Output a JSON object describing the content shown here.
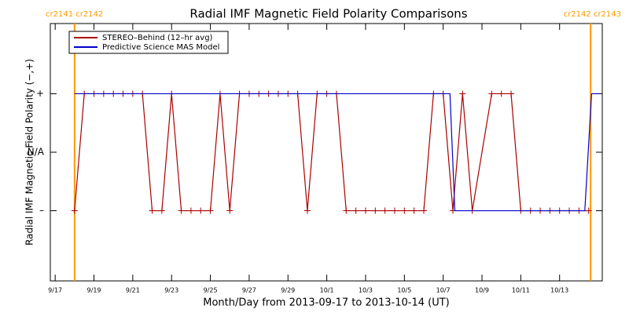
{
  "chart_data": {
    "type": "line",
    "title": "Radial IMF Magnetic Field Polarity Comparisons",
    "x_label": "Month/Day from 2013-09-17 to 2013-10-14 (UT)",
    "y_label": "Radial IMF Magnetic Field Polarity (−,+)",
    "xlim": [
      -0.25,
      28.2
    ],
    "ylim": [
      -2.2,
      2.2
    ],
    "xticks": [
      {
        "value": 0,
        "label": "9/17"
      },
      {
        "value": 2,
        "label": "9/19"
      },
      {
        "value": 4,
        "label": "9/21"
      },
      {
        "value": 6,
        "label": "9/23"
      },
      {
        "value": 8,
        "label": "9/25"
      },
      {
        "value": 10,
        "label": "9/27"
      },
      {
        "value": 12,
        "label": "9/29"
      },
      {
        "value": 14,
        "label": "10/1"
      },
      {
        "value": 16,
        "label": "10/3"
      },
      {
        "value": 18,
        "label": "10/5"
      },
      {
        "value": 20,
        "label": "10/7"
      },
      {
        "value": 22,
        "label": "10/9"
      },
      {
        "value": 24,
        "label": "10/11"
      },
      {
        "value": 26,
        "label": "10/13"
      }
    ],
    "yticks": [
      {
        "value": 1,
        "label": "+"
      },
      {
        "value": 0,
        "label": "N/A"
      },
      {
        "value": -1,
        "label": "–"
      }
    ],
    "boundaries": [
      {
        "x": 1.0,
        "label": "cr2141 cr2142",
        "color": "#ff9900"
      },
      {
        "x": 27.6,
        "label": "cr2142 cr2143",
        "color": "#ff9900"
      }
    ],
    "legend": "upper left",
    "series": [
      {
        "name": "STEREO–Behind (12–hr avg)",
        "color": "#aa0000",
        "markers": true,
        "x": [
          1,
          1.5,
          2,
          2.5,
          3,
          3.5,
          4,
          4.5,
          5,
          5.5,
          6,
          6.5,
          7,
          7.5,
          8,
          8.5,
          9,
          9.5,
          10,
          10.5,
          11,
          11.5,
          12,
          12.5,
          13,
          13.5,
          14,
          14.5,
          15,
          15.5,
          16,
          16.5,
          17,
          17.5,
          18,
          18.5,
          19,
          19.5,
          20,
          20.5,
          21,
          21.5,
          22.5,
          23,
          23.5,
          24,
          24.5,
          25,
          25.5,
          26,
          26.5,
          27,
          27.5
        ],
        "values": [
          -1,
          1,
          1,
          1,
          1,
          1,
          1,
          1,
          -1,
          -1,
          1,
          -1,
          -1,
          -1,
          -1,
          1,
          -1,
          1,
          1,
          1,
          1,
          1,
          1,
          1,
          -1,
          1,
          1,
          1,
          -1,
          -1,
          -1,
          -1,
          -1,
          -1,
          -1,
          -1,
          -1,
          1,
          1,
          -1,
          1,
          -1,
          1,
          1,
          1,
          -1,
          -1,
          -1,
          -1,
          -1,
          -1,
          -1,
          -1
        ]
      },
      {
        "name": "Predictive Science MAS Model",
        "color": "#0000cc",
        "markers": false,
        "x": [
          1.0,
          20.35,
          20.6,
          27.3,
          27.65,
          28.05
        ],
        "values": [
          1,
          1,
          -1,
          -1,
          1,
          1
        ]
      }
    ]
  }
}
